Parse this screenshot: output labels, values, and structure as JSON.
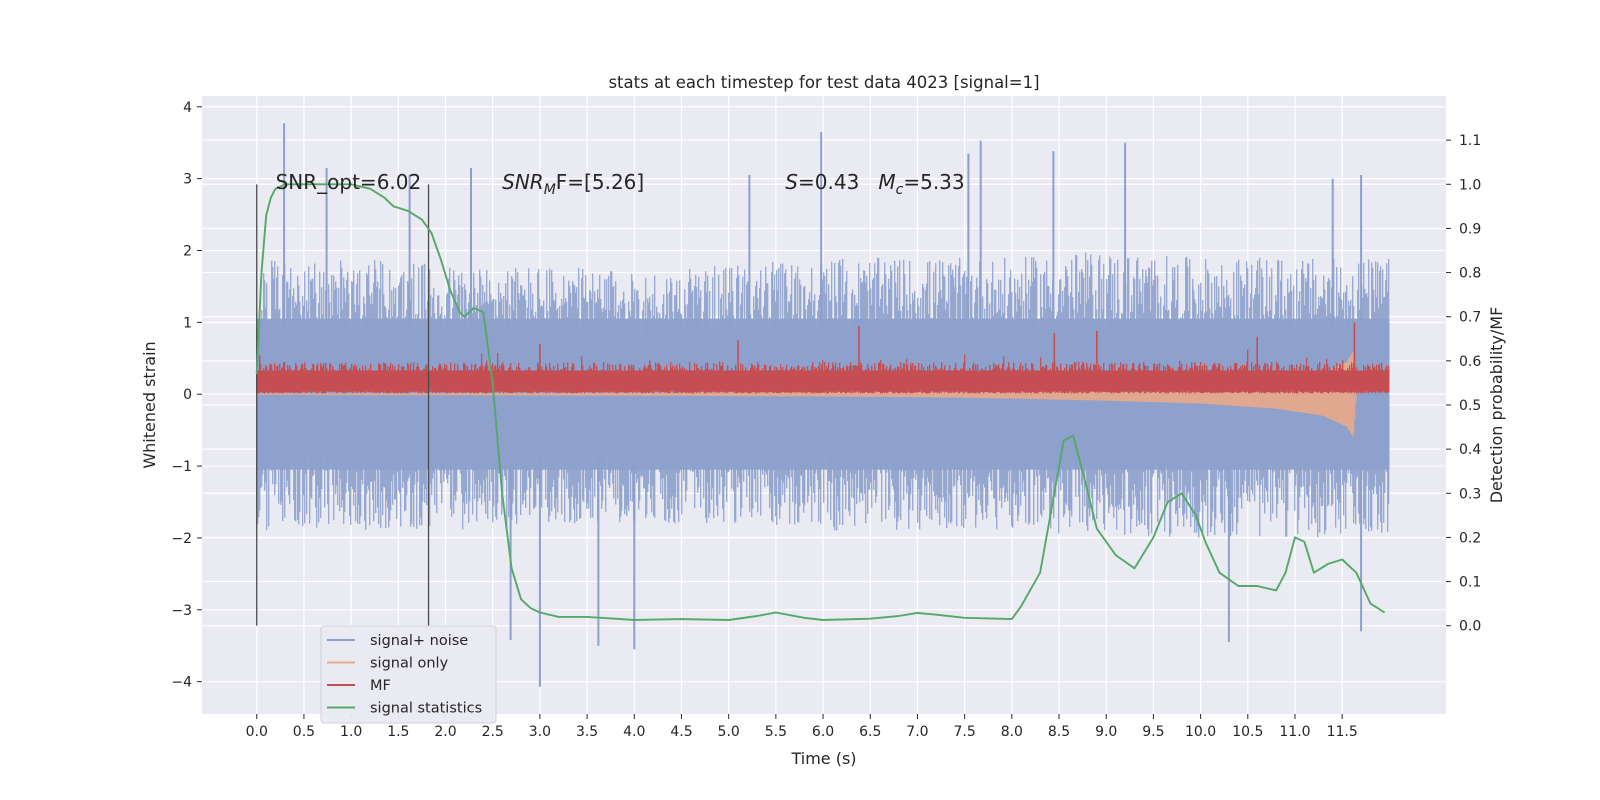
{
  "chart_data": {
    "type": "line",
    "title": "stats at each timestep for test data 4023 [signal=1]",
    "xlabel": "Time (s)",
    "ylabel": "Whitened strain",
    "ylabel_right": "Detection probability/MF",
    "xlim": [
      -0.58,
      12.6
    ],
    "ylim": [
      -4.45,
      4.15
    ],
    "ylim_right": [
      -0.2,
      1.2
    ],
    "x_ticks": [
      0.0,
      0.5,
      1.0,
      1.5,
      2.0,
      2.5,
      3.0,
      3.5,
      4.0,
      4.5,
      5.0,
      5.5,
      6.0,
      6.5,
      7.0,
      7.5,
      8.0,
      8.5,
      9.0,
      9.5,
      10.0,
      10.5,
      11.0,
      11.5
    ],
    "x_tick_labels": [
      "0.0",
      "0.5",
      "1.0",
      "1.5",
      "2.0",
      "2.5",
      "3.0",
      "3.5",
      "4.0",
      "4.5",
      "5.0",
      "5.5",
      "6.0",
      "6.5",
      "7.0",
      "7.5",
      "8.0",
      "8.5",
      "9.0",
      "9.5",
      "10.0",
      "10.5",
      "11.0",
      "11.5"
    ],
    "y_ticks": [
      -4,
      -3,
      -2,
      -1,
      0,
      1,
      2,
      3,
      4
    ],
    "y_tick_labels": [
      "−4",
      "−3",
      "−2",
      "−1",
      "0",
      "1",
      "2",
      "3",
      "4"
    ],
    "y_right_ticks": [
      0.0,
      0.1,
      0.2,
      0.3,
      0.4,
      0.5,
      0.6,
      0.7,
      0.8,
      0.9,
      1.0,
      1.1
    ],
    "y_right_tick_labels": [
      "0.0",
      "0.1",
      "0.2",
      "0.3",
      "0.4",
      "0.5",
      "0.6",
      "0.7",
      "0.8",
      "0.9",
      "1.0",
      "1.1"
    ],
    "grid": true,
    "legend_position": "lower-left",
    "annotations": [
      {
        "text": "SNR_opt=6.02",
        "x": 0.2,
        "y": 2.95
      },
      {
        "text": "SNR",
        "sub": "M",
        "tail": "F=[5.26]",
        "italic": true,
        "x": 2.6,
        "y": 2.95
      },
      {
        "text": "S",
        "tail": "=0.43   ",
        "text2": "M",
        "sub2": "c",
        "tail2": "=5.33",
        "italic": true,
        "x": 5.6,
        "y": 2.95
      }
    ],
    "vertical_markers": [
      {
        "x": 0.0,
        "ymin": -3.22,
        "ymax": 2.92
      },
      {
        "x": 1.82,
        "ymin": -3.22,
        "ymax": 2.92
      }
    ],
    "series": [
      {
        "name": "signal+ noise",
        "axis": "left",
        "color": "#8da0cb",
        "x_range": [
          0.0,
          12.0
        ],
        "envelope_upper": [
          [
            0.0,
            1.9
          ],
          [
            0.5,
            1.8
          ],
          [
            1.0,
            1.9
          ],
          [
            2.0,
            1.8
          ],
          [
            3.0,
            1.8
          ],
          [
            4.0,
            1.7
          ],
          [
            5.0,
            1.8
          ],
          [
            6.0,
            1.9
          ],
          [
            7.0,
            1.9
          ],
          [
            8.0,
            1.9
          ],
          [
            9.0,
            2.0
          ],
          [
            10.0,
            1.9
          ],
          [
            11.0,
            1.9
          ],
          [
            12.0,
            1.9
          ]
        ],
        "envelope_lower": [
          [
            0.0,
            -1.9
          ],
          [
            1.0,
            -1.9
          ],
          [
            2.0,
            -1.9
          ],
          [
            3.0,
            -1.8
          ],
          [
            4.0,
            -1.8
          ],
          [
            5.0,
            -1.8
          ],
          [
            6.0,
            -1.9
          ],
          [
            7.0,
            -1.9
          ],
          [
            8.0,
            -1.9
          ],
          [
            9.0,
            -2.0
          ],
          [
            10.0,
            -2.0
          ],
          [
            11.0,
            -2.0
          ],
          [
            12.0,
            -2.0
          ]
        ],
        "peaks": [
          [
            0.29,
            3.77
          ],
          [
            0.74,
            3.15
          ],
          [
            1.62,
            3.05
          ],
          [
            2.27,
            3.15
          ],
          [
            5.22,
            3.05
          ],
          [
            5.98,
            3.65
          ],
          [
            7.54,
            3.35
          ],
          [
            7.67,
            3.53
          ],
          [
            8.44,
            3.38
          ],
          [
            9.2,
            3.5
          ],
          [
            11.4,
            3.0
          ],
          [
            11.7,
            3.05
          ],
          [
            2.69,
            -3.42
          ],
          [
            3.0,
            -4.07
          ],
          [
            3.62,
            -3.5
          ],
          [
            4.0,
            -3.55
          ],
          [
            10.3,
            -3.45
          ],
          [
            11.7,
            -3.3
          ]
        ]
      },
      {
        "name": "signal only",
        "axis": "left",
        "color": "#e5a98b",
        "x_range": [
          0.0,
          11.65
        ],
        "amplitude": [
          [
            0.0,
            0.01
          ],
          [
            4.0,
            0.02
          ],
          [
            6.0,
            0.03
          ],
          [
            7.0,
            0.04
          ],
          [
            8.0,
            0.06
          ],
          [
            9.0,
            0.09
          ],
          [
            10.0,
            0.13
          ],
          [
            10.8,
            0.2
          ],
          [
            11.3,
            0.3
          ],
          [
            11.55,
            0.45
          ],
          [
            11.62,
            0.6
          ],
          [
            11.65,
            0.0
          ]
        ]
      },
      {
        "name": "MF",
        "axis": "left",
        "color": "#c44e52",
        "x_range": [
          0.0,
          12.0
        ],
        "band": [
          -0.05,
          0.45
        ],
        "peaks": [
          [
            6.38,
            0.95
          ],
          [
            8.45,
            0.85
          ],
          [
            8.9,
            0.88
          ],
          [
            10.6,
            0.8
          ],
          [
            11.63,
            1.0
          ],
          [
            5.1,
            0.75
          ],
          [
            3.0,
            0.7
          ]
        ]
      },
      {
        "name": "signal statistics",
        "axis": "right",
        "color": "#55a868",
        "x": [
          0.0,
          0.05,
          0.1,
          0.15,
          0.2,
          0.3,
          0.5,
          0.8,
          1.0,
          1.2,
          1.35,
          1.45,
          1.6,
          1.75,
          1.85,
          1.95,
          2.05,
          2.15,
          2.2,
          2.3,
          2.4,
          2.5,
          2.6,
          2.7,
          2.8,
          2.9,
          3.0,
          3.2,
          3.5,
          3.8,
          4.0,
          4.5,
          5.0,
          5.3,
          5.5,
          5.8,
          6.0,
          6.5,
          6.8,
          7.0,
          7.2,
          7.5,
          8.0,
          8.1,
          8.3,
          8.45,
          8.55,
          8.65,
          8.75,
          8.9,
          9.1,
          9.3,
          9.5,
          9.65,
          9.8,
          9.95,
          10.05,
          10.2,
          10.4,
          10.6,
          10.8,
          10.9,
          11.0,
          11.1,
          11.2,
          11.35,
          11.5,
          11.65,
          11.8,
          11.95
        ],
        "values": [
          0.57,
          0.8,
          0.93,
          0.97,
          0.99,
          1.0,
          1.0,
          1.0,
          1.0,
          0.99,
          0.97,
          0.95,
          0.94,
          0.92,
          0.89,
          0.83,
          0.76,
          0.71,
          0.7,
          0.72,
          0.71,
          0.55,
          0.3,
          0.13,
          0.06,
          0.04,
          0.03,
          0.02,
          0.02,
          0.016,
          0.013,
          0.015,
          0.013,
          0.022,
          0.03,
          0.018,
          0.013,
          0.016,
          0.022,
          0.029,
          0.025,
          0.018,
          0.015,
          0.045,
          0.12,
          0.3,
          0.42,
          0.43,
          0.35,
          0.22,
          0.16,
          0.13,
          0.2,
          0.28,
          0.3,
          0.25,
          0.19,
          0.12,
          0.09,
          0.09,
          0.08,
          0.12,
          0.2,
          0.19,
          0.12,
          0.14,
          0.15,
          0.12,
          0.05,
          0.03
        ]
      }
    ]
  }
}
